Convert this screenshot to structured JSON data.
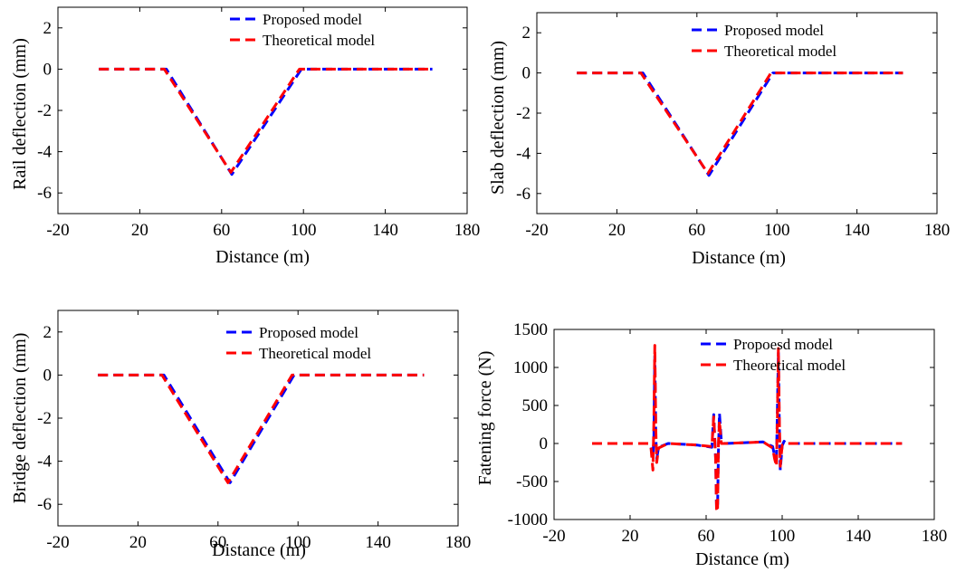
{
  "colors": {
    "proposed": "#0000ff",
    "theoretical": "#ff0000"
  },
  "chart_data": [
    {
      "type": "line",
      "xlabel": "Distance (m)",
      "ylabel": "Rail deflection (mm)",
      "xlim": [
        -20,
        180
      ],
      "ylim": [
        -7,
        3
      ],
      "xticks": [
        -20,
        20,
        60,
        100,
        140,
        180
      ],
      "yticks": [
        2,
        0,
        -2,
        -4,
        -6
      ],
      "legend": "top-right",
      "series": [
        {
          "name": "Proposed model",
          "x": [
            0,
            33,
            65,
            99,
            163
          ],
          "y": [
            0,
            0,
            -5.1,
            0,
            0
          ]
        },
        {
          "name": "Theoretical model",
          "x": [
            0,
            32,
            64.5,
            98,
            163
          ],
          "y": [
            0,
            0,
            -5.0,
            0,
            0
          ]
        }
      ]
    },
    {
      "type": "line",
      "xlabel": "Distance (m)",
      "ylabel": "Slab deflection (mm)",
      "xlim": [
        -20,
        180
      ],
      "ylim": [
        -7,
        3
      ],
      "xticks": [
        -20,
        20,
        60,
        100,
        140,
        180
      ],
      "yticks": [
        2,
        0,
        -2,
        -4,
        -6
      ],
      "legend": "top-right",
      "series": [
        {
          "name": "Proposed model",
          "x": [
            0,
            33,
            66,
            98,
            163
          ],
          "y": [
            0,
            0,
            -5.1,
            0,
            0
          ]
        },
        {
          "name": "Theoretical model",
          "x": [
            0,
            32,
            65.5,
            97,
            163
          ],
          "y": [
            0,
            0,
            -5.0,
            0,
            0
          ]
        }
      ]
    },
    {
      "type": "line",
      "xlabel": "Distance (m)",
      "ylabel": "Bridge deflection (mm)",
      "xlim": [
        -20,
        180
      ],
      "ylim": [
        -7,
        3
      ],
      "xticks": [
        -20,
        20,
        60,
        100,
        140,
        180
      ],
      "yticks": [
        2,
        0,
        -2,
        -4,
        -6
      ],
      "legend": "top-right",
      "series": [
        {
          "name": "Proposed model",
          "x": [
            0,
            33,
            66,
            98,
            163
          ],
          "y": [
            0,
            0,
            -5.0,
            0,
            0
          ]
        },
        {
          "name": "Theoretical model",
          "x": [
            0,
            32,
            65,
            97,
            163
          ],
          "y": [
            0,
            0,
            -5.0,
            0,
            0
          ]
        }
      ]
    },
    {
      "type": "line",
      "xlabel": "Distance (m)",
      "ylabel": "Fatening force (N)",
      "xlim": [
        -20,
        180
      ],
      "ylim": [
        -1000,
        1500
      ],
      "xticks": [
        -20,
        20,
        60,
        100,
        140,
        180
      ],
      "yticks": [
        1500,
        1000,
        500,
        0,
        -500,
        -1000
      ],
      "legend": "top-right",
      "series": [
        {
          "name": "Propoesd model",
          "x": [
            0,
            30,
            31,
            32,
            32.5,
            33,
            33.5,
            34,
            35,
            40,
            55,
            63,
            64,
            65,
            65.5,
            66,
            66.5,
            67,
            68,
            70,
            90,
            95,
            96,
            97,
            97.5,
            98,
            98.5,
            99,
            100,
            101,
            102,
            110,
            163
          ],
          "y": [
            0,
            0,
            -50,
            -200,
            100,
            1150,
            100,
            -200,
            -50,
            0,
            -20,
            -50,
            380,
            -200,
            -850,
            -870,
            -100,
            400,
            30,
            0,
            20,
            -40,
            -160,
            -200,
            500,
            1200,
            200,
            -350,
            -30,
            30,
            0,
            0,
            0
          ]
        },
        {
          "name": "Theoretical model",
          "x": [
            0,
            30,
            31,
            32,
            32.5,
            33,
            33.5,
            34,
            35,
            40,
            55,
            63,
            64,
            65,
            65.5,
            66,
            66.5,
            67,
            68,
            70,
            90,
            95,
            96,
            97,
            97.5,
            98,
            98.5,
            99,
            100,
            102,
            110,
            163
          ],
          "y": [
            0,
            0,
            -60,
            -350,
            300,
            1290,
            200,
            -250,
            -60,
            0,
            -20,
            -40,
            350,
            -200,
            -860,
            -900,
            0,
            300,
            0,
            0,
            20,
            -60,
            -200,
            -300,
            400,
            1250,
            300,
            -300,
            -20,
            0,
            0,
            0
          ]
        }
      ]
    }
  ]
}
